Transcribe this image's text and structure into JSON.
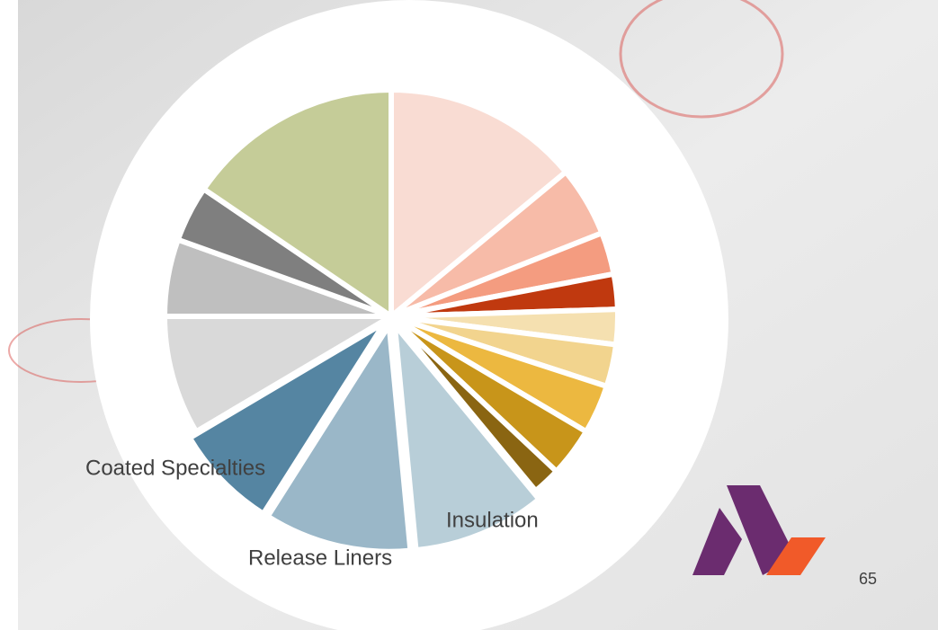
{
  "chart_data": {
    "type": "pie",
    "categories": [
      null,
      null,
      null,
      null,
      null,
      null,
      null,
      null,
      null,
      "Insulation",
      "Release Liners",
      "Coated Specialties",
      null,
      null,
      null,
      null
    ],
    "values": [
      14,
      5,
      3,
      2.5,
      2.5,
      3,
      3.5,
      3.5,
      2,
      9.5,
      10.5,
      7.5,
      8.5,
      5.5,
      4,
      15.5
    ],
    "colors": [
      "#f9dcd3",
      "#f7bba8",
      "#f49c80",
      "#c0390f",
      "#f5e0b0",
      "#f2d48e",
      "#ecb840",
      "#c8951a",
      "#8a6512",
      "#b8ced8",
      "#9ab7c8",
      "#5585a2",
      "#d9d9d9",
      "#bfbfbf",
      "#7f7f7f",
      "#c5cc98"
    ]
  },
  "slide": {
    "page_number": "65"
  }
}
